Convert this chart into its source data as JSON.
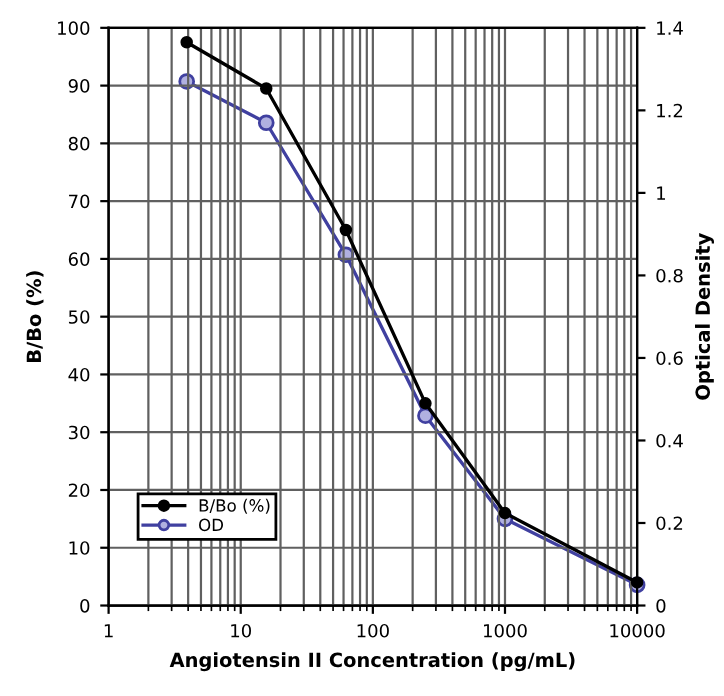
{
  "chart_data": {
    "type": "line",
    "xlabel": "Angiotensin II Concentration (pg/mL)",
    "ylabel": "B/Bo (%)",
    "y2label": "Optical Density",
    "x": [
      3.9,
      15.6,
      62.5,
      250,
      1000,
      10000
    ],
    "series": [
      {
        "name": "B/Bo (%)",
        "color": "#000000",
        "values": [
          97.5,
          89.5,
          65,
          35,
          16,
          4
        ],
        "marker": "circle"
      },
      {
        "name": "OD",
        "color": "#4040a0",
        "values": [
          1.27,
          1.17,
          0.85,
          0.46,
          0.21,
          0.05
        ],
        "axis": "y2",
        "marker": "circle"
      }
    ],
    "log": "x",
    "xlim": [
      1,
      10000
    ],
    "xticks": [
      1,
      10,
      100,
      1000,
      10000
    ],
    "ylim": [
      0,
      100
    ],
    "yticks": [
      0,
      10,
      20,
      30,
      40,
      50,
      60,
      70,
      80,
      90,
      100
    ],
    "y2lim": [
      0,
      1.4
    ],
    "y2ticks": [
      0,
      {
        "value": 0.2,
        "label": "0.2"
      },
      {
        "value": 0.4,
        "label": "0.4"
      },
      {
        "value": 0.6,
        "label": "0.6"
      },
      {
        "value": 0.8,
        "label": "0.8"
      },
      1,
      {
        "value": 1.2,
        "label": "1.2"
      },
      {
        "value": 1.4,
        "label": "1.4"
      }
    ],
    "grid": true,
    "legend": "bottom left",
    "line_style": "solid"
  }
}
